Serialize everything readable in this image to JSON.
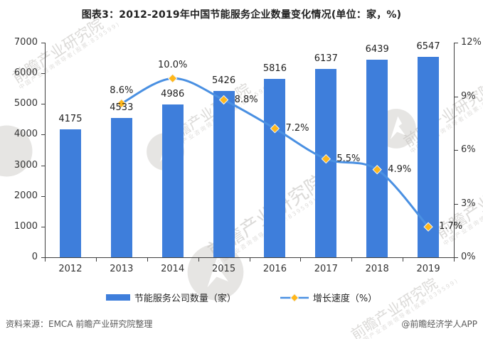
{
  "chart_data": {
    "type": "bar+line",
    "title": "图表3：2012-2019年中国节能服务企业数量变化情况(单位：家，%)",
    "categories": [
      "2012",
      "2013",
      "2014",
      "2015",
      "2016",
      "2017",
      "2018",
      "2019"
    ],
    "series": [
      {
        "name": "节能服务公司数量（家）",
        "type": "bar",
        "axis": "left",
        "color": "#3e7edb",
        "values": [
          4175,
          4533,
          4986,
          5426,
          5816,
          6137,
          6439,
          6547
        ],
        "labels": [
          "4175",
          "4533",
          "4986",
          "5426",
          "5816",
          "6137",
          "6439",
          "6547"
        ]
      },
      {
        "name": "增长速度（%）",
        "type": "line",
        "axis": "right",
        "color": "#4a90e2",
        "marker": "diamond",
        "marker_color": "#ffb71b",
        "values": [
          null,
          8.6,
          10.0,
          8.8,
          7.2,
          5.5,
          4.9,
          1.7
        ],
        "labels": [
          "",
          "8.6%",
          "10.0%",
          "8.8%",
          "7.2%",
          "5.5%",
          "4.9%",
          "1.7%"
        ],
        "label_placement": [
          "",
          "above",
          "above",
          "right",
          "right",
          "right",
          "right",
          "right"
        ]
      }
    ],
    "left_axis": {
      "min": 0,
      "max": 7000,
      "tick_labels": [
        "0",
        "1000",
        "2000",
        "3000",
        "4000",
        "5000",
        "6000",
        "7000"
      ]
    },
    "right_axis": {
      "min": 0,
      "max": 12,
      "tick_labels": [
        "0%",
        "3%",
        "6%",
        "9%",
        "12%"
      ]
    },
    "grid": false,
    "legend_position": "bottom"
  },
  "legend": {
    "items": [
      {
        "label": "节能服务公司数量（家）",
        "swatch": "bar"
      },
      {
        "label": "增长速度（%）",
        "swatch": "line-diamond"
      }
    ]
  },
  "footer": {
    "source": "资料来源：EMCA 前瞻产业研究院整理",
    "credit": "@前瞻经济学人APP"
  },
  "watermark": {
    "text": "前瞻产业研究院",
    "subtext": "中国产业咨询领导者(股票:839599)",
    "logo": "qianzhan-logo"
  }
}
